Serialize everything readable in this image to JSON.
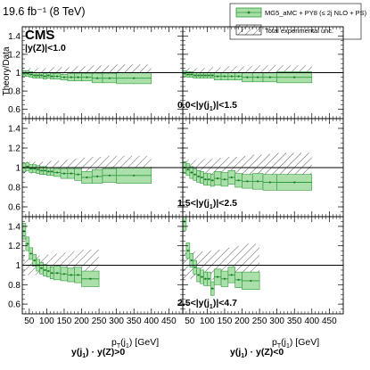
{
  "header": {
    "luminosity": "19.6 fb⁻¹ (8 TeV)",
    "experiment": "CMS"
  },
  "legend": {
    "entries": [
      {
        "label": "MG5_aMC + PY8 (≤ 2j NLO + PS)",
        "kind": "band"
      },
      {
        "label": "Total experimental unc.",
        "kind": "hatch"
      }
    ]
  },
  "colors": {
    "band_fill": "#a6dea6",
    "band_edge": "#2f9a3a",
    "marker": "#1f7a2a",
    "hatch": "#333333",
    "reference_line": "#000000"
  },
  "labels": {
    "ylabel": "Theory/Data",
    "xlabel_left": "p_T(j_1) [GeV]",
    "xlabel_right": "p_T(j_1) [GeV]",
    "column_left": "y(j_1) · y(Z)>0",
    "column_right": "y(j_1) · y(Z)<0",
    "row_top_inner": "|y(Z)|<1.0",
    "rows": [
      "0.0<|y(j_1)|<1.5",
      "1.5<|y(j_1)|<2.5",
      "2.5<|y(j_1)|<4.7"
    ]
  },
  "chart_data": {
    "type": "ratio-panels",
    "xlim": [
      30,
      490
    ],
    "ylim": [
      0.5,
      1.5
    ],
    "x_ticks": [
      50,
      100,
      150,
      200,
      250,
      300,
      350,
      400,
      450
    ],
    "y_ticks": [
      0.6,
      0.8,
      1,
      1.2,
      1.4
    ],
    "reference": 1,
    "panels": [
      {
        "row": 0,
        "col": 0,
        "edges": [
          30,
          40,
          50,
          60,
          70,
          80,
          90,
          100,
          110,
          120,
          140,
          160,
          180,
          200,
          230,
          260,
          300,
          400
        ],
        "ratio": [
          0.99,
          0.99,
          0.98,
          0.97,
          0.97,
          0.97,
          0.96,
          0.97,
          0.96,
          0.96,
          0.95,
          0.95,
          0.95,
          0.95,
          0.94,
          0.94,
          0.94
        ],
        "theory_unc": [
          0.03,
          0.03,
          0.03,
          0.03,
          0.03,
          0.03,
          0.03,
          0.03,
          0.03,
          0.03,
          0.03,
          0.04,
          0.04,
          0.04,
          0.05,
          0.05,
          0.06
        ],
        "exp_unc": [
          0.05,
          0.05,
          0.05,
          0.05,
          0.05,
          0.05,
          0.05,
          0.05,
          0.06,
          0.06,
          0.06,
          0.06,
          0.07,
          0.07,
          0.08,
          0.08,
          0.09
        ]
      },
      {
        "row": 0,
        "col": 1,
        "edges": [
          30,
          40,
          50,
          60,
          70,
          80,
          90,
          100,
          110,
          120,
          140,
          160,
          180,
          200,
          230,
          260,
          300,
          400
        ],
        "ratio": [
          0.99,
          0.98,
          0.98,
          0.97,
          0.97,
          0.97,
          0.97,
          0.97,
          0.97,
          0.96,
          0.96,
          0.96,
          0.96,
          0.95,
          0.95,
          0.95,
          0.95
        ],
        "theory_unc": [
          0.03,
          0.03,
          0.03,
          0.03,
          0.03,
          0.03,
          0.03,
          0.03,
          0.03,
          0.04,
          0.04,
          0.04,
          0.04,
          0.05,
          0.05,
          0.05,
          0.06
        ],
        "exp_unc": [
          0.05,
          0.05,
          0.05,
          0.05,
          0.05,
          0.05,
          0.05,
          0.06,
          0.06,
          0.06,
          0.06,
          0.07,
          0.07,
          0.07,
          0.08,
          0.08,
          0.08
        ]
      },
      {
        "row": 1,
        "col": 0,
        "edges": [
          30,
          40,
          50,
          60,
          70,
          80,
          90,
          100,
          110,
          120,
          140,
          160,
          180,
          200,
          230,
          260,
          300,
          400
        ],
        "ratio": [
          1.0,
          1.01,
          0.99,
          0.99,
          0.98,
          0.97,
          0.97,
          0.96,
          0.96,
          0.95,
          0.94,
          0.94,
          0.93,
          0.9,
          0.91,
          0.92,
          0.92
        ],
        "theory_unc": [
          0.04,
          0.04,
          0.04,
          0.04,
          0.04,
          0.04,
          0.04,
          0.04,
          0.04,
          0.04,
          0.05,
          0.05,
          0.06,
          0.06,
          0.07,
          0.07,
          0.08
        ],
        "exp_unc": [
          0.06,
          0.06,
          0.06,
          0.06,
          0.06,
          0.06,
          0.06,
          0.07,
          0.07,
          0.07,
          0.08,
          0.08,
          0.09,
          0.1,
          0.11,
          0.12,
          0.12
        ]
      },
      {
        "row": 1,
        "col": 1,
        "edges": [
          30,
          40,
          50,
          60,
          70,
          80,
          90,
          100,
          110,
          120,
          140,
          160,
          180,
          200,
          230,
          260,
          300,
          400
        ],
        "ratio": [
          1.0,
          0.98,
          0.95,
          0.93,
          0.91,
          0.9,
          0.88,
          0.88,
          0.87,
          0.89,
          0.88,
          0.9,
          0.87,
          0.86,
          0.86,
          0.85,
          0.85
        ],
        "theory_unc": [
          0.06,
          0.06,
          0.06,
          0.06,
          0.06,
          0.06,
          0.06,
          0.06,
          0.06,
          0.07,
          0.07,
          0.07,
          0.07,
          0.07,
          0.08,
          0.08,
          0.08
        ],
        "exp_unc": [
          0.08,
          0.08,
          0.08,
          0.08,
          0.08,
          0.08,
          0.09,
          0.09,
          0.09,
          0.1,
          0.1,
          0.11,
          0.11,
          0.12,
          0.13,
          0.14,
          0.15
        ]
      },
      {
        "row": 2,
        "col": 0,
        "edges": [
          30,
          40,
          50,
          60,
          70,
          80,
          90,
          100,
          110,
          120,
          140,
          160,
          180,
          200,
          250
        ],
        "ratio": [
          1.35,
          1.22,
          1.12,
          1.05,
          1.0,
          0.97,
          0.95,
          0.94,
          0.92,
          0.92,
          0.91,
          0.9,
          0.9,
          0.86
        ],
        "theory_unc": [
          0.08,
          0.07,
          0.06,
          0.06,
          0.06,
          0.06,
          0.06,
          0.06,
          0.06,
          0.07,
          0.07,
          0.07,
          0.08,
          0.08
        ],
        "exp_unc": [
          0.1,
          0.1,
          0.1,
          0.1,
          0.1,
          0.1,
          0.1,
          0.11,
          0.12,
          0.12,
          0.13,
          0.14,
          0.15,
          0.16
        ]
      },
      {
        "row": 2,
        "col": 1,
        "edges": [
          30,
          40,
          50,
          60,
          70,
          80,
          90,
          100,
          110,
          120,
          140,
          160,
          180,
          200,
          250
        ],
        "ratio": [
          1.45,
          1.15,
          1.05,
          0.98,
          0.9,
          0.88,
          0.86,
          0.86,
          0.76,
          0.88,
          0.86,
          0.9,
          0.85,
          0.84
        ],
        "theory_unc": [
          0.09,
          0.08,
          0.07,
          0.07,
          0.07,
          0.07,
          0.07,
          0.07,
          0.07,
          0.08,
          0.08,
          0.08,
          0.08,
          0.09
        ],
        "exp_unc": [
          0.14,
          0.14,
          0.14,
          0.14,
          0.14,
          0.14,
          0.14,
          0.15,
          0.15,
          0.16,
          0.17,
          0.18,
          0.2,
          0.22
        ]
      }
    ]
  }
}
